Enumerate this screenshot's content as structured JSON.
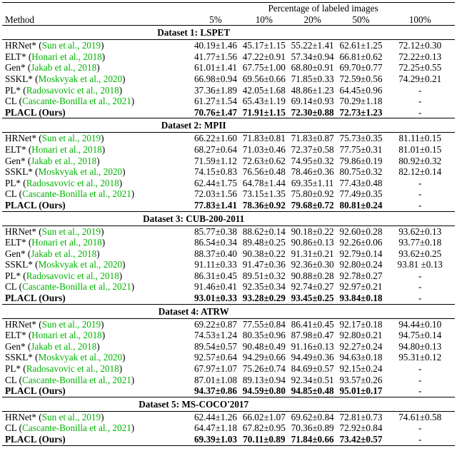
{
  "colors": {
    "citation_green": "#00b400",
    "text": "#000000",
    "background": "#ffffff"
  },
  "header": {
    "group_title": "Percentage of labeled images",
    "method_label": "Method",
    "columns": [
      "5%",
      "10%",
      "20%",
      "50%",
      "100%"
    ]
  },
  "datasets": [
    {
      "title": "Dataset 1: LSPET",
      "rows": [
        {
          "method": "HRNet*",
          "cite": "Sun et al., 2019",
          "bold": false,
          "values": [
            "40.19±1.46",
            "45.17±1.15",
            "55.22±1.41",
            "62.61±1.25",
            "72.12±0.30"
          ]
        },
        {
          "method": "ELT*",
          "cite": "Honari et al., 2018",
          "bold": false,
          "values": [
            "41.77±1.56",
            "47.22±0.91",
            "57.34±0.94",
            "66.81±0.62",
            "72.22±0.13"
          ]
        },
        {
          "method": "Gen*",
          "cite": "Jakab et al., 2018",
          "bold": false,
          "values": [
            "61.01±1.41",
            "67.75±1.00",
            "68.80±0.91",
            "69.70±0.77",
            "72.25±0.55"
          ]
        },
        {
          "method": "SSKL*",
          "cite": "Moskvyak et al., 2020",
          "bold": false,
          "values": [
            "66.98±0.94",
            "69.56±0.66",
            "71.85±0.33",
            "72.59±0.56",
            "74.29±0.21"
          ]
        },
        {
          "method": "PL*",
          "cite": "Radosavovic et al., 2018",
          "bold": false,
          "values": [
            "37.36±1.89",
            "42.05±1.68",
            "48.86±1.23",
            "64.45±0.96",
            "-"
          ]
        },
        {
          "method": "CL",
          "cite": "Cascante-Bonilla et al., 2021",
          "bold": false,
          "values": [
            "61.27±1.54",
            "65.43±1.19",
            "69.14±0.93",
            "70.29±1.18",
            "-"
          ]
        },
        {
          "method": "PLACL (Ours)",
          "cite": null,
          "bold": true,
          "values": [
            "70.76±1.47",
            "71.91±1.15",
            "72.30±0.88",
            "72.73±1.23",
            "-"
          ]
        }
      ]
    },
    {
      "title": "Dataset 2: MPII",
      "rows": [
        {
          "method": "HRNet*",
          "cite": "Sun et al., 2019",
          "bold": false,
          "values": [
            "66.22±1.60",
            "71.83±0.81",
            "71.83±0.87",
            "75.73±0.35",
            "81.11±0.15"
          ]
        },
        {
          "method": "ELT*",
          "cite": "Honari et al., 2018",
          "bold": false,
          "values": [
            "68.27±0.64",
            "71.03±0.46",
            "72.37±0.58",
            "77.75±0.31",
            "81.01±0.15"
          ]
        },
        {
          "method": "Gen*",
          "cite": "Jakab et al., 2018",
          "bold": false,
          "values": [
            "71.59±1.12",
            "72.63±0.62",
            "74.95±0.32",
            "79.86±0.19",
            "80.92±0.32"
          ]
        },
        {
          "method": "SSKL*",
          "cite": "Moskvyak et al., 2020",
          "bold": false,
          "values": [
            "74.15±0.83",
            "76.56±0.48",
            "78.46±0.36",
            "80.75±0.32",
            "82.12±0.14"
          ]
        },
        {
          "method": "PL*",
          "cite": "Radosavovic et al., 2018",
          "bold": false,
          "values": [
            "62.44±1.75",
            "64.78±1.44",
            "69.35±1.11",
            "77.43±0.48",
            "-"
          ]
        },
        {
          "method": "CL",
          "cite": "Cascante-Bonilla et al., 2021",
          "bold": false,
          "values": [
            "72.03±1.56",
            "73.15±1.35",
            "75.80±0.92",
            "77.49±0.35",
            "-"
          ]
        },
        {
          "method": "PLACL (Ours)",
          "cite": null,
          "bold": true,
          "values": [
            "77.83±1.41",
            "78.36±0.92",
            "79.68±0.72",
            "80.81±0.24",
            "-"
          ]
        }
      ]
    },
    {
      "title": "Dataset 3: CUB-200-2011",
      "rows": [
        {
          "method": "HRNet*",
          "cite": "Sun et al., 2019",
          "bold": false,
          "values": [
            "85.77±0.38",
            "88.62±0.14",
            "90.18±0.22",
            "92.60±0.28",
            "93.62±0.13"
          ]
        },
        {
          "method": "ELT*",
          "cite": "Honari et al., 2018",
          "bold": false,
          "values": [
            "86.54±0.34",
            "89.48±0.25",
            "90.86±0.13",
            "92.26±0.06",
            "93.77±0.18"
          ]
        },
        {
          "method": "Gen*",
          "cite": "Jakab et al., 2018",
          "bold": false,
          "values": [
            "88.37±0.40",
            "90.38±0.22",
            "91.31±0.21",
            "92.79±0.14",
            "93.62±0.25"
          ]
        },
        {
          "method": "SSKL*",
          "cite": "Moskvyak et al., 2020",
          "bold": false,
          "values": [
            "91.11±0.33",
            "91.47±0.36",
            "92.36±0.30",
            "92.80±0.24",
            "93.81 ±0.13"
          ]
        },
        {
          "method": "PL*",
          "cite": "Radosavovic et al., 2018",
          "bold": false,
          "values": [
            "86.31±0.45",
            "89.51±0.32",
            "90.88±0.28",
            "92.78±0.27",
            "-"
          ]
        },
        {
          "method": "CL",
          "cite": "Cascante-Bonilla et al., 2021",
          "bold": false,
          "values": [
            "91.46±0.41",
            "92.35±0.34",
            "92.74±0.27",
            "92.97±0.21",
            "-"
          ]
        },
        {
          "method": "PLACL (Ours)",
          "cite": null,
          "bold": true,
          "values": [
            "93.01±0.33",
            "93.28±0.29",
            "93.45±0.25",
            "93.84±0.18",
            "-"
          ]
        }
      ]
    },
    {
      "title": "Dataset 4: ATRW",
      "rows": [
        {
          "method": "HRNet*",
          "cite": "Sun et al., 2019",
          "bold": false,
          "values": [
            "69.22±0.87",
            "77.55±0.84",
            "86.41±0.45",
            "92.17±0.18",
            "94.44±0.10"
          ]
        },
        {
          "method": "ELT*",
          "cite": "Honari et al., 2018",
          "bold": false,
          "values": [
            "74.53±1.24",
            "80.35±0.96",
            "87.98±0.47",
            "92.80±0.21",
            "94.75±0.14"
          ]
        },
        {
          "method": "Gen*",
          "cite": "Jakab et al., 2018",
          "bold": false,
          "values": [
            "89.54±0.57",
            "90.48±0.49",
            "91.16±0.13",
            "92.27±0.24",
            "94.80±0.13"
          ]
        },
        {
          "method": "SSKL*",
          "cite": "Moskvyak et al., 2020",
          "bold": false,
          "values": [
            "92.57±0.64",
            "94.29±0.66",
            "94.49±0.36",
            "94.63±0.18",
            "95.31±0.12"
          ]
        },
        {
          "method": "PL*",
          "cite": "Radosavovic et al., 2018",
          "bold": false,
          "values": [
            "67.97±1.07",
            "75.26±0.74",
            "84.69±0.57",
            "92.15±0.24",
            "-"
          ]
        },
        {
          "method": "CL",
          "cite": "Cascante-Bonilla et al., 2021",
          "bold": false,
          "values": [
            "87.01±1.08",
            "89.13±0.94",
            "92.34±0.51",
            "93.57±0.26",
            "-"
          ]
        },
        {
          "method": "PLACL (Ours)",
          "cite": null,
          "bold": true,
          "values": [
            "94.37±0.86",
            "94.59±0.80",
            "94.85±0.48",
            "95.01±0.17",
            "-"
          ]
        }
      ]
    },
    {
      "title": "Dataset 5: MS-COCO'2017",
      "rows": [
        {
          "method": "HRNet*",
          "cite": "Sun et al., 2019",
          "bold": false,
          "values": [
            "62.44±1.26",
            "66.02±1.07",
            "69.62±0.84",
            "72.81±0.73",
            "74.61±0.58"
          ]
        },
        {
          "method": "CL",
          "cite": "Cascante-Bonilla et al., 2021",
          "bold": false,
          "values": [
            "64.47±1.18",
            "67.82±0.95",
            "70.36±0.89",
            "72.92±0.84",
            "-"
          ]
        },
        {
          "method": "PLACL (Ours)",
          "cite": null,
          "bold": true,
          "values": [
            "69.39±1.03",
            "70.11±0.89",
            "71.84±0.66",
            "73.42±0.57",
            "-"
          ]
        }
      ]
    }
  ]
}
